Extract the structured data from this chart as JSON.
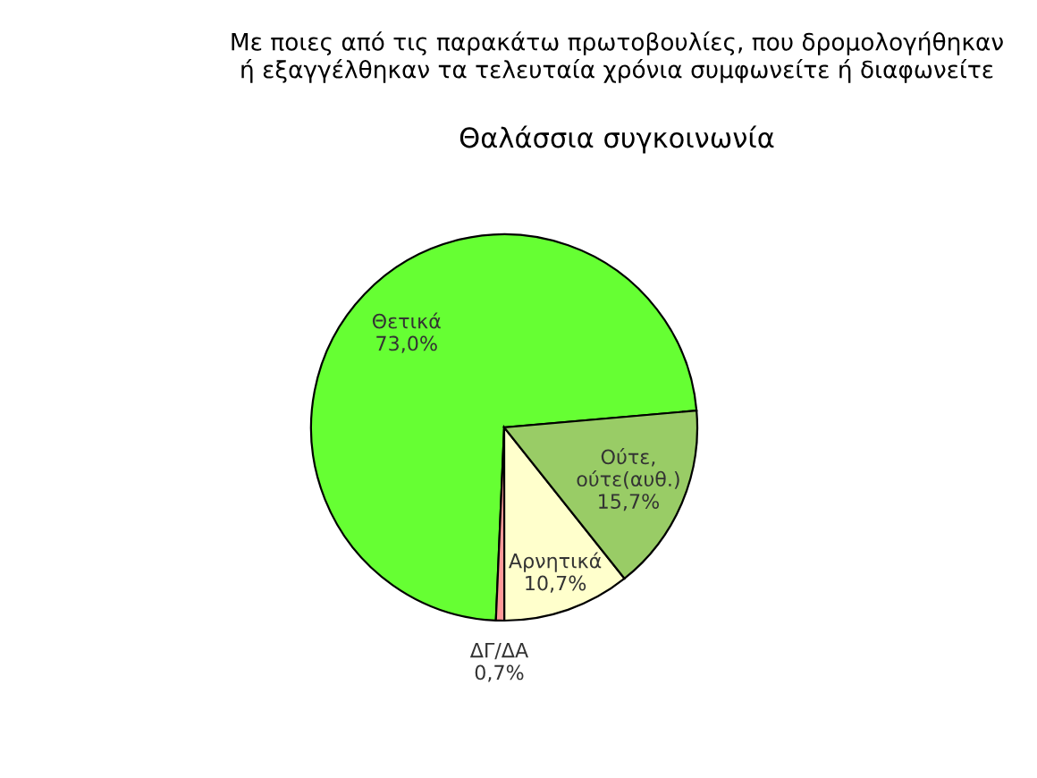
{
  "chart_data": {
    "type": "pie",
    "title": "Με ποιες από τις παρακάτω πρωτοβουλίες, που δρομολογήθηκαν\nή εξαγγέλθηκαν τα τελευταία χρόνια συμφωνείτε ή διαφωνείτε",
    "subtitle": "Θαλάσσια συγκοινωνία",
    "categories": [
      "Θετικά",
      "ΔΓ/ΔΑ",
      "Αρνητικά",
      "Ούτε,\nούτε(αυθ.)"
    ],
    "values": [
      73.0,
      0.7,
      10.7,
      15.7
    ],
    "value_labels": [
      "73,0%",
      "0,7%",
      "10,7%",
      "15,7%"
    ],
    "colors": [
      "#66ff33",
      "#ff9999",
      "#ffffcc",
      "#99cc66"
    ]
  }
}
